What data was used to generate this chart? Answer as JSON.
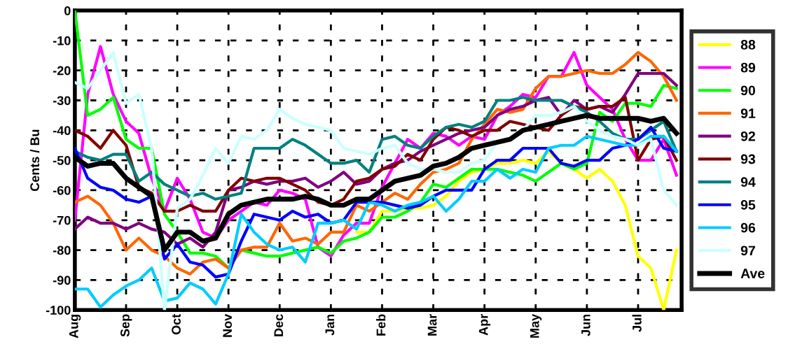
{
  "chart_data": {
    "type": "line",
    "ylabel": "Cents / Bu",
    "ylim": [
      -100,
      0
    ],
    "categories": [
      "Aug",
      null,
      null,
      null,
      "Sep",
      null,
      null,
      null,
      "Oct",
      null,
      null,
      null,
      "Nov",
      null,
      null,
      null,
      "Dec",
      null,
      null,
      null,
      "Jan",
      null,
      null,
      null,
      "Feb",
      null,
      null,
      null,
      "Mar",
      null,
      null,
      null,
      "Apr",
      null,
      null,
      null,
      "May",
      null,
      null,
      null,
      "Jun",
      null,
      null,
      null,
      "Jul",
      null,
      null,
      null
    ],
    "yticks": [
      -100,
      -90,
      -80,
      -70,
      -60,
      -50,
      -40,
      -30,
      -20,
      -10,
      0
    ],
    "grid": true,
    "legend": "right",
    "marker": "none",
    "line_style": "solid",
    "series": [
      {
        "name": "88",
        "color": "#ffff00",
        "values": [
          null,
          null,
          null,
          null,
          null,
          null,
          null,
          null,
          null,
          null,
          null,
          null,
          null,
          null,
          null,
          null,
          null,
          null,
          null,
          null,
          null,
          null,
          -74,
          -74,
          -67,
          -67,
          -66,
          -66,
          -65,
          -62,
          -57,
          -54,
          -53,
          -51,
          -51,
          -50,
          -51,
          -47,
          -51,
          -53,
          -56,
          -53,
          -57,
          -65,
          -82,
          -86,
          -100,
          -80
        ]
      },
      {
        "name": "89",
        "color": "#ff00ff",
        "values": [
          -70,
          -28,
          -12,
          -28,
          -37,
          -41,
          -56,
          -67,
          -56,
          -63,
          -74,
          -76,
          -70,
          -67,
          -64,
          -65,
          -60,
          -61,
          -63,
          -79,
          -82,
          -75,
          -71,
          -71,
          -59,
          -51,
          -43,
          -46,
          -41,
          -42,
          -45,
          -42,
          -43,
          -35,
          -32,
          -28,
          -29,
          -22,
          -22,
          -14,
          -25,
          -29,
          -33,
          -43,
          -50,
          -50,
          -43,
          -55
        ]
      },
      {
        "name": "90",
        "color": "#00ff00",
        "values": [
          0,
          -35,
          -33,
          -29,
          -43,
          -46,
          -46,
          -68,
          -74,
          -81,
          -81,
          -82,
          -86,
          -80,
          -81,
          -82,
          -82,
          -81,
          -80,
          -79,
          -81,
          -77,
          -76,
          -74,
          -69,
          -69,
          -67,
          -64,
          -58,
          -59,
          -56,
          -53,
          -53,
          -53,
          -54,
          -55,
          -57,
          -54,
          -51,
          -53,
          -51,
          -34,
          -37,
          -31,
          -31,
          -32,
          -25,
          -26
        ]
      },
      {
        "name": "91",
        "color": "#ff6600",
        "values": [
          -64,
          -62,
          -65,
          -71,
          -80,
          -76,
          -80,
          -82,
          -86,
          -88,
          -84,
          -83,
          -86,
          -80,
          -79,
          -79,
          -71,
          -77,
          -76,
          -78,
          -74,
          -74,
          -65,
          -67,
          -64,
          -61,
          -63,
          -58,
          -54,
          -53,
          -51,
          -43,
          -38,
          -33,
          -34,
          -33,
          -26,
          -22,
          -22,
          -21,
          -20,
          -21,
          -21,
          -18,
          -14,
          -17,
          -22,
          -30
        ]
      },
      {
        "name": "92",
        "color": "#800080",
        "values": [
          -73,
          -69,
          -71,
          -71,
          -73,
          -71,
          -73,
          -74,
          -78,
          -76,
          -79,
          -74,
          -60,
          -59,
          -57,
          -58,
          -57,
          -57,
          -56,
          -59,
          -57,
          -54,
          -58,
          -57,
          -53,
          -51,
          -50,
          -47,
          -45,
          -43,
          -41,
          -40,
          -39,
          -35,
          -33,
          -32,
          -30,
          -29,
          -35,
          -30,
          -33,
          -32,
          -34,
          -28,
          -21,
          -21,
          -21,
          -25
        ]
      },
      {
        "name": "93",
        "color": "#800000",
        "values": [
          -40,
          -42,
          -46,
          -40,
          -45,
          -59,
          -61,
          -67,
          -67,
          -65,
          -67,
          -67,
          -60,
          -56,
          -57,
          -56,
          -56,
          -58,
          -60,
          -64,
          -65,
          -63,
          -57,
          -56,
          -53,
          -52,
          -48,
          -50,
          -43,
          -39,
          -40,
          -42,
          -40,
          -40,
          -37,
          -38,
          -39,
          -40,
          -35,
          -32,
          -33,
          -32,
          -32,
          -29,
          -50,
          -43,
          -42,
          -50
        ]
      },
      {
        "name": "94",
        "color": "#008080",
        "values": [
          -47,
          -49,
          -50,
          -48,
          -48,
          -57,
          -54,
          -58,
          -60,
          -62,
          -61,
          -63,
          -62,
          -61,
          -46,
          -46,
          -46,
          -43,
          -45,
          -48,
          -51,
          -51,
          -50,
          -54,
          -43,
          -42,
          -45,
          -46,
          -42,
          -39,
          -38,
          -39,
          -37,
          -30,
          -30,
          -29,
          -30,
          -30,
          -30,
          -32,
          -34,
          -37,
          -41,
          -43,
          -43,
          -40,
          -37,
          -47
        ]
      },
      {
        "name": "95",
        "color": "#0000ff",
        "values": [
          -46,
          -56,
          -59,
          -60,
          -63,
          -64,
          -62,
          -83,
          -78,
          -84,
          -85,
          -89,
          -88,
          -77,
          -68,
          -69,
          -70,
          -67,
          -69,
          -68,
          -71,
          -70,
          -64,
          -64,
          -64,
          -65,
          -66,
          -65,
          -62,
          -60,
          -60,
          -60,
          -53,
          -50,
          -50,
          -46,
          -46,
          -46,
          -51,
          -52,
          -50,
          -50,
          -46,
          -45,
          -43,
          -39,
          -46,
          -47
        ]
      },
      {
        "name": "96",
        "color": "#00ccff",
        "values": [
          -93,
          -93,
          -99,
          -95,
          -92,
          -90,
          -86,
          -97,
          -96,
          -91,
          -93,
          -98,
          -88,
          -68,
          -74,
          -78,
          -80,
          -79,
          -84,
          -71,
          -71,
          -70,
          -73,
          -64,
          -65,
          -67,
          -65,
          -64,
          -62,
          -67,
          -63,
          -57,
          -57,
          -53,
          -56,
          -53,
          -54,
          -46,
          -45,
          -45,
          -42,
          -43,
          -44,
          -45,
          -45,
          -42,
          -42,
          -47
        ]
      },
      {
        "name": "97",
        "color": "#ccffff",
        "values": [
          -24,
          -26,
          -20,
          -14,
          -31,
          -28,
          -46,
          -100,
          -66,
          -63,
          -55,
          -46,
          -51,
          -42,
          -43,
          -40,
          -33,
          -36,
          -38,
          -39,
          -40,
          -46,
          -47,
          -48,
          -46,
          -45,
          -51,
          -53,
          -53,
          -54,
          -54,
          -51,
          -50,
          -44,
          -43,
          -40,
          -35,
          -35,
          -34,
          -32,
          -37,
          -40,
          -42,
          -43,
          -45,
          -43,
          -60,
          -65
        ]
      },
      {
        "name": "Ave",
        "color": "#000000",
        "values": [
          -49,
          -52,
          -51,
          -51,
          -56,
          -59,
          -62,
          -80,
          -74,
          -74,
          -77,
          -76,
          -68,
          -65,
          -64,
          -63,
          -63,
          -63,
          -62,
          -63,
          -65,
          -65,
          -63,
          -63,
          -60,
          -57,
          -56,
          -55,
          -52,
          -51,
          -49,
          -46,
          -45,
          -44,
          -43,
          -40,
          -39,
          -38,
          -37,
          -36,
          -35,
          -36,
          -36,
          -36,
          -36,
          -37,
          -36,
          -41
        ]
      }
    ]
  }
}
